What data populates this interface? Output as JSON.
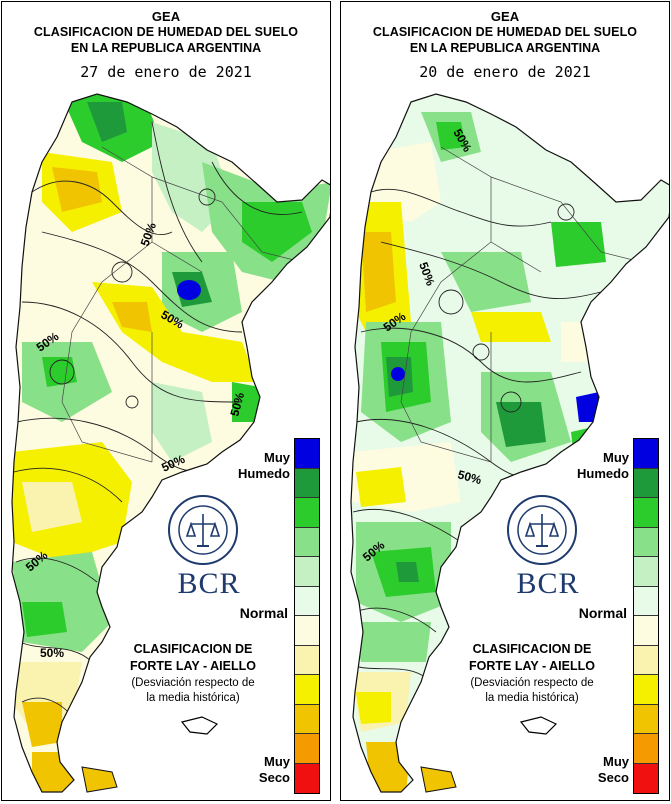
{
  "panels": [
    {
      "header": "GEA",
      "title_line1": "CLASIFICACION DE HUMEDAD DEL SUELO",
      "title_line2": "EN LA REPUBLICA ARGENTINA",
      "date": "27 de enero de 2021",
      "contour_labels": [
        "50%",
        "50%",
        "50%",
        "50%",
        "50%",
        "50%",
        "50%"
      ]
    },
    {
      "header": "GEA",
      "title_line1": "CLASIFICACION DE HUMEDAD DEL SUELO",
      "title_line2": "EN LA REPUBLICA ARGENTINA",
      "date": "20 de enero de 2021",
      "contour_labels": [
        "50%",
        "50%",
        "50%",
        "50%",
        "50%"
      ]
    }
  ],
  "legend": {
    "wet_label": "Muy Humedo",
    "normal_label": "Normal",
    "dry_label": "Muy Seco",
    "colors": [
      "#0000e0",
      "#1e9a3a",
      "#2ccc2c",
      "#88e088",
      "#c4f0c4",
      "#e8fae8",
      "#fdfbe0",
      "#faf3b0",
      "#f5f000",
      "#f0c400",
      "#f59a00",
      "#f01010"
    ]
  },
  "classification": {
    "title_line1": "CLASIFICACION DE",
    "title_line2": "FORTE LAY - AIELLO",
    "note_line1": "(Desviación respecto de",
    "note_line2": "la media histórica)"
  },
  "brand": {
    "logo_text": "BCR"
  }
}
